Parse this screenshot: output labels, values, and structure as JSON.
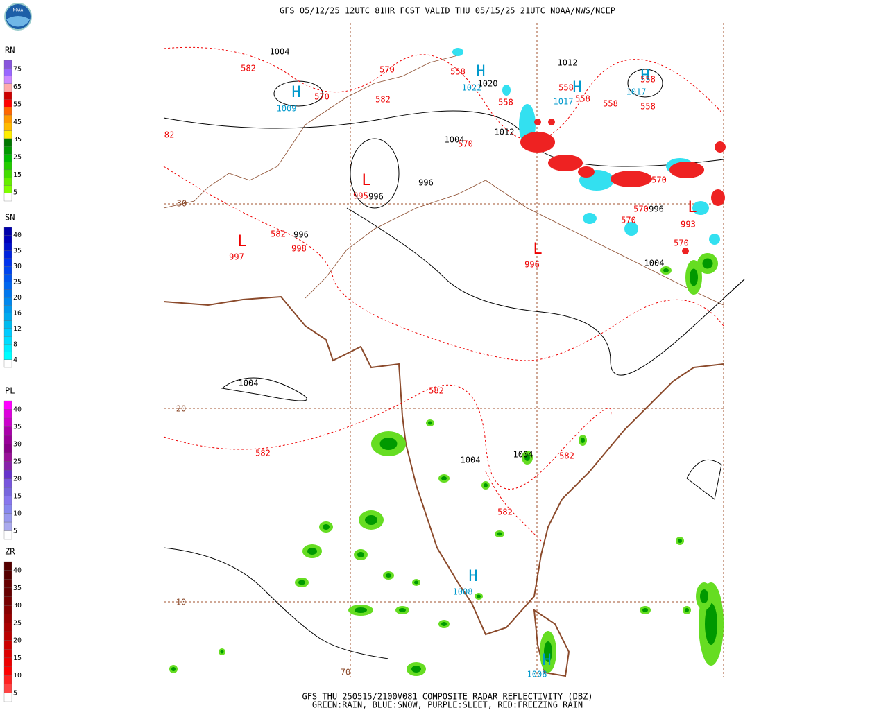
{
  "header": {
    "title": "GFS 05/12/25 12UTC 81HR FCST VALID THU 05/15/25 21UTC NOAA/NWS/NCEP"
  },
  "footer": {
    "line1": "GFS THU 250515/2100V081 COMPOSITE RADAR REFLECTIVITY (DBZ)",
    "line2": "GREEN:RAIN, BLUE:SNOW, PURPLE:SLEET, RED:FREEZING RAIN"
  },
  "logo": "NOAA",
  "legends": [
    {
      "label": "RN",
      "ticks": [
        "75",
        "65",
        "55",
        "45",
        "35",
        "25",
        "15",
        "5"
      ]
    },
    {
      "label": "SN",
      "ticks": [
        "40",
        "35",
        "30",
        "25",
        "20",
        "16",
        "12",
        "8",
        "4"
      ]
    },
    {
      "label": "PL",
      "ticks": [
        "40",
        "35",
        "30",
        "25",
        "20",
        "15",
        "10",
        "5"
      ]
    },
    {
      "label": "ZR",
      "ticks": [
        "40",
        "35",
        "30",
        "25",
        "20",
        "15",
        "10",
        "5"
      ]
    }
  ],
  "map": {
    "labels": [
      "1004",
      "582",
      "570",
      "558",
      "H",
      "1022",
      "1020",
      "H",
      "570",
      "1009",
      "582",
      "558",
      "1012",
      "558",
      "H",
      "1017",
      "558",
      "558",
      "558",
      "H",
      "558",
      "1017",
      "82",
      "1012",
      "1004",
      "570",
      "L",
      "996",
      "995",
      "996",
      "30",
      "582",
      "996",
      "L",
      "998",
      "997",
      "L",
      "996",
      "570",
      "996",
      "L",
      "993",
      "570",
      "570",
      "1004",
      "570",
      "1004",
      "582",
      "20",
      "582",
      "1004",
      "1004",
      "582",
      "582",
      "H",
      "1008",
      "10",
      "70",
      "H",
      "1008"
    ]
  }
}
